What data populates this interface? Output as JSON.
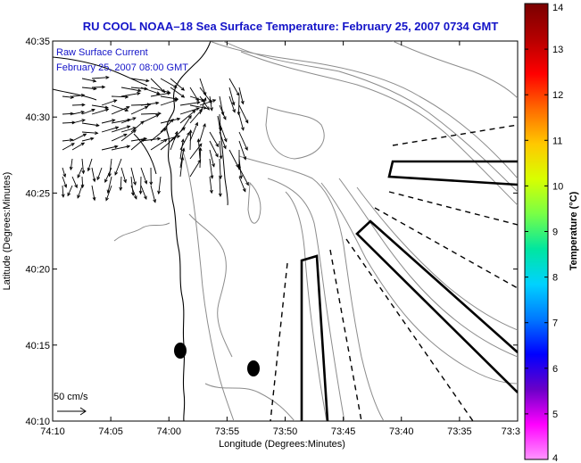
{
  "title": "RU COOL  NOAA–18  Sea Surface Temperature:  February 25, 2007 0734 GMT",
  "legend": {
    "line1": "Raw Surface Current",
    "line2": "February 25, 2007 08:00 GMT",
    "scale_label": "50 cm/s"
  },
  "axes": {
    "xlabel": "Longitude (Degrees:Minutes)",
    "ylabel": "Latitude (Degrees:Minutes)",
    "xticks": [
      "74:10",
      "74:05",
      "74:00",
      "73:55",
      "73:50",
      "73:45",
      "73:40",
      "73:35",
      "73:3"
    ],
    "yticks": [
      "40:35",
      "40:30",
      "40:25",
      "40:20",
      "40:15",
      "40:10"
    ]
  },
  "colorbar": {
    "label": "Temperature (°C)",
    "ticks": [
      "14",
      "13",
      "12",
      "11",
      "10",
      "9",
      "8",
      "7",
      "6",
      "5",
      "4"
    ],
    "colors": [
      "#7a0000",
      "#b40000",
      "#ff0000",
      "#ff6a00",
      "#ffc800",
      "#d8ff00",
      "#78ff46",
      "#00e6a0",
      "#00d2ff",
      "#0078ff",
      "#0000ff",
      "#6a00c8",
      "#ff00ff",
      "#ff96ff"
    ]
  }
}
